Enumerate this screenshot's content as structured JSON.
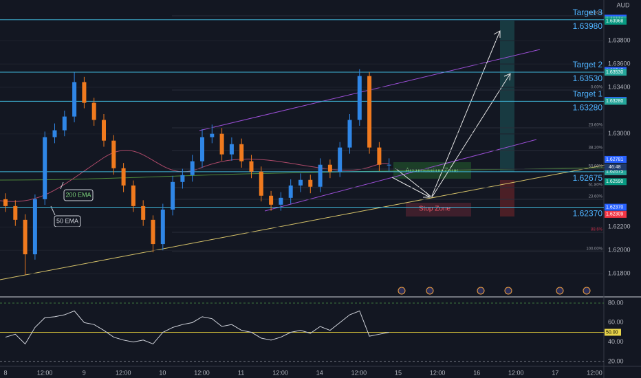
{
  "chart_data": {
    "type": "candlestick",
    "currency": "AUD",
    "open": [
      1.62439,
      1.6238,
      1.62262,
      1.61966,
      1.62439,
      1.62972,
      1.63031,
      1.63149,
      1.63445,
      1.63267,
      1.6312,
      1.62942,
      1.62705,
      1.62557,
      1.6238,
      1.62262,
      1.62054,
      1.6235,
      1.62587,
      1.62646,
      1.62765,
      1.62972,
      1.63001,
      1.62824,
      1.62912,
      1.62765,
      1.62676,
      1.62469,
      1.62392,
      1.62451,
      1.62557,
      1.62605,
      1.62546,
      1.62735,
      1.62676,
      1.62883,
      1.6312,
      1.63497,
      1.62883,
      1.62735
    ],
    "high": [
      1.6249,
      1.6243,
      1.6231,
      1.6248,
      1.6302,
      1.6309,
      1.632,
      1.63528,
      1.6349,
      1.6331,
      1.6317,
      1.6299,
      1.6275,
      1.626,
      1.6243,
      1.623,
      1.624,
      1.6264,
      1.627,
      1.6282,
      1.6304,
      1.6308,
      1.6305,
      1.6297,
      1.6296,
      1.6282,
      1.6272,
      1.6251,
      1.625,
      1.6261,
      1.6266,
      1.6265,
      1.6279,
      1.6278,
      1.6293,
      1.6317,
      1.63556,
      1.6353,
      1.6293,
      1.6279
    ],
    "low": [
      1.6233,
      1.6221,
      1.61788,
      1.6192,
      1.6239,
      1.6292,
      1.6298,
      1.631,
      1.6322,
      1.6307,
      1.6289,
      1.6265,
      1.625,
      1.6233,
      1.6221,
      1.61983,
      1.62,
      1.623,
      1.6253,
      1.6259,
      1.6271,
      1.6292,
      1.6277,
      1.6277,
      1.6271,
      1.6262,
      1.6242,
      1.6234,
      1.6234,
      1.624,
      1.625,
      1.6249,
      1.625,
      1.6262,
      1.6263,
      1.6283,
      1.6307,
      1.6283,
      1.6268,
      1.6268
    ],
    "close": [
      1.6238,
      1.62262,
      1.61966,
      1.62439,
      1.62972,
      1.63031,
      1.63149,
      1.63445,
      1.63267,
      1.6312,
      1.62942,
      1.62705,
      1.62557,
      1.6238,
      1.62262,
      1.62054,
      1.6235,
      1.62587,
      1.62646,
      1.62765,
      1.62972,
      1.63001,
      1.62824,
      1.62912,
      1.62765,
      1.62676,
      1.62469,
      1.62392,
      1.62451,
      1.62557,
      1.62605,
      1.62546,
      1.62735,
      1.62676,
      1.62883,
      1.6312,
      1.63497,
      1.62883,
      1.62735,
      1.62735
    ],
    "up_color": "#2f86e6",
    "down_color": "#f07a1e",
    "ylim": [
      1.616,
      1.6415
    ],
    "yticks": [
      {
        "value": 1.618,
        "label": "1.61800"
      },
      {
        "value": 1.62,
        "label": "1.62000"
      },
      {
        "value": 1.622,
        "label": "1.62200"
      },
      {
        "value": 1.63,
        "label": "1.63000"
      },
      {
        "value": 1.634,
        "label": "1.63400"
      },
      {
        "value": 1.636,
        "label": "1.63600"
      },
      {
        "value": 1.638,
        "label": "1.63800"
      }
    ],
    "time_labels": [
      "8",
      "12:00",
      "9",
      "12:00",
      "10",
      "12:00",
      "11",
      "12:00",
      "14",
      "12:00",
      "15",
      "12:00",
      "16",
      "12:00",
      "17",
      "12:00"
    ],
    "levels": [
      {
        "name": "Target 3",
        "value": 1.6398,
        "label": "1.63980"
      },
      {
        "name": "Target 2",
        "value": 1.6353,
        "label": "1.63530"
      },
      {
        "name": "Target 1",
        "value": 1.6328,
        "label": "1.63280"
      },
      {
        "value": 1.62675,
        "label": "1.62675"
      },
      {
        "value": 1.6237,
        "label": "1.62370"
      }
    ],
    "price_tags": [
      {
        "value": 1.63994,
        "label": "1.63994",
        "color": "#2962ff"
      },
      {
        "value": 1.6398,
        "label": "1.63980",
        "color": "#26a69a"
      },
      {
        "value": 1.63968,
        "label": "1.63968",
        "color": "#089981"
      },
      {
        "value": 1.63545,
        "label": "1.63545",
        "color": "#2962ff"
      },
      {
        "value": 1.6353,
        "label": "1.63530",
        "color": "#26a69a"
      },
      {
        "value": 1.63288,
        "label": "1.63288",
        "color": "#2962ff"
      },
      {
        "value": 1.6328,
        "label": "1.63280",
        "color": "#26a69a"
      },
      {
        "value": 1.62781,
        "label": "1.62781",
        "color": "#2962ff"
      },
      {
        "value": 1.62675,
        "label": "1.62675",
        "color": "#26a69a"
      },
      {
        "value": 1.6259,
        "label": "1.62590",
        "color": "#089981"
      },
      {
        "value": 1.6237,
        "label": "1.62370",
        "color": "#2962ff"
      },
      {
        "value": 1.62309,
        "label": "1.62309",
        "color": "#f23645"
      }
    ],
    "countdown": "46:48",
    "fib_levels": [
      {
        "label": "61.80%",
        "value": 1.64014
      },
      {
        "label": "0.00%",
        "value": 1.63377
      },
      {
        "label": "23.60%",
        "value": 1.63052
      },
      {
        "label": "38.20%",
        "value": 1.62857
      },
      {
        "label": "50.00%",
        "value": 1.62698
      },
      {
        "label": "61.80%",
        "value": 1.62539
      },
      {
        "label": "23.60%",
        "value": 1.62438
      },
      {
        "label": "88.6%",
        "value": 1.62155
      },
      {
        "label": "100.00%",
        "value": 1.6199
      }
    ],
    "annotations": {
      "accumulation": "Accumulation Zone",
      "stop": "Stop Zone",
      "ema200": "200 EMA",
      "ema50": "50 EMA"
    },
    "rsi": {
      "values": [
        45,
        48,
        38,
        55,
        65,
        66,
        68,
        72,
        60,
        58,
        52,
        45,
        42,
        40,
        42,
        38,
        50,
        55,
        58,
        60,
        66,
        64,
        56,
        58,
        52,
        50,
        44,
        42,
        45,
        50,
        52,
        49,
        56,
        52,
        60,
        68,
        72,
        46,
        48,
        50
      ],
      "color": "#d1d4dc",
      "ylim": [
        15,
        86.4
      ],
      "yticks": [
        {
          "value": 20,
          "label": "20.00"
        },
        {
          "value": 40,
          "label": "40.00"
        },
        {
          "value": 60,
          "label": "60.00"
        },
        {
          "value": 80,
          "label": "80.00"
        }
      ],
      "midline": {
        "value": 50,
        "label": "50.00"
      }
    }
  }
}
